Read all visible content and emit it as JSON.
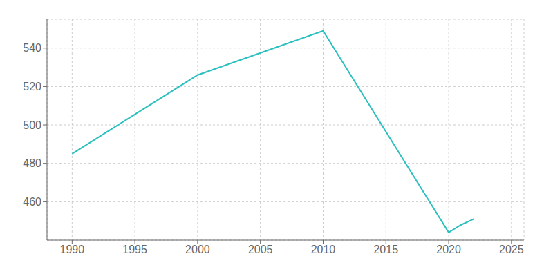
{
  "chart_data": {
    "type": "line",
    "x": [
      1990,
      2000,
      2010,
      2020,
      2021,
      2022
    ],
    "values": [
      485,
      526,
      549,
      444,
      448,
      451
    ],
    "color": "#2bbfbf",
    "xlim": [
      1988,
      2026
    ],
    "ylim": [
      440,
      555
    ],
    "xticks": [
      1990,
      1995,
      2000,
      2005,
      2010,
      2015,
      2020,
      2025
    ],
    "yticks": [
      460,
      480,
      500,
      520,
      540
    ],
    "grid": true
  }
}
